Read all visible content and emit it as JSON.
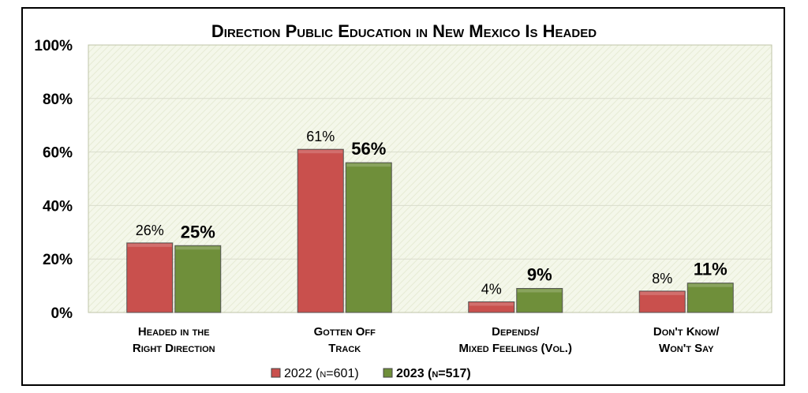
{
  "chart_data": {
    "type": "bar",
    "title": "Direction Public Education in New Mexico Is Headed",
    "categories": [
      [
        "Headed in the",
        "Right Direction"
      ],
      [
        "Gotten Off",
        "Track"
      ],
      [
        "Depends/",
        "Mixed Feelings (Vol.)"
      ],
      [
        "Don't Know/",
        "Won't Say"
      ]
    ],
    "series": [
      {
        "name": "2022 (n=601)",
        "values": [
          26,
          61,
          4,
          8
        ],
        "labels": [
          "26%",
          "61%",
          "4%",
          "8%"
        ],
        "color": "#c9504d",
        "bold": false
      },
      {
        "name": "2023 (n=517)",
        "values": [
          25,
          56,
          9,
          11
        ],
        "labels": [
          "25%",
          "56%",
          "9%",
          "11%"
        ],
        "color": "#6f8f3a",
        "bold": true
      }
    ],
    "ylim": [
      0,
      100
    ],
    "yticks": [
      "0%",
      "20%",
      "40%",
      "60%",
      "80%",
      "100%"
    ],
    "grid": true,
    "legend": "bottom",
    "colors": {
      "plot_background": "#f4f7ea",
      "gridline": "#d9dccc"
    }
  }
}
